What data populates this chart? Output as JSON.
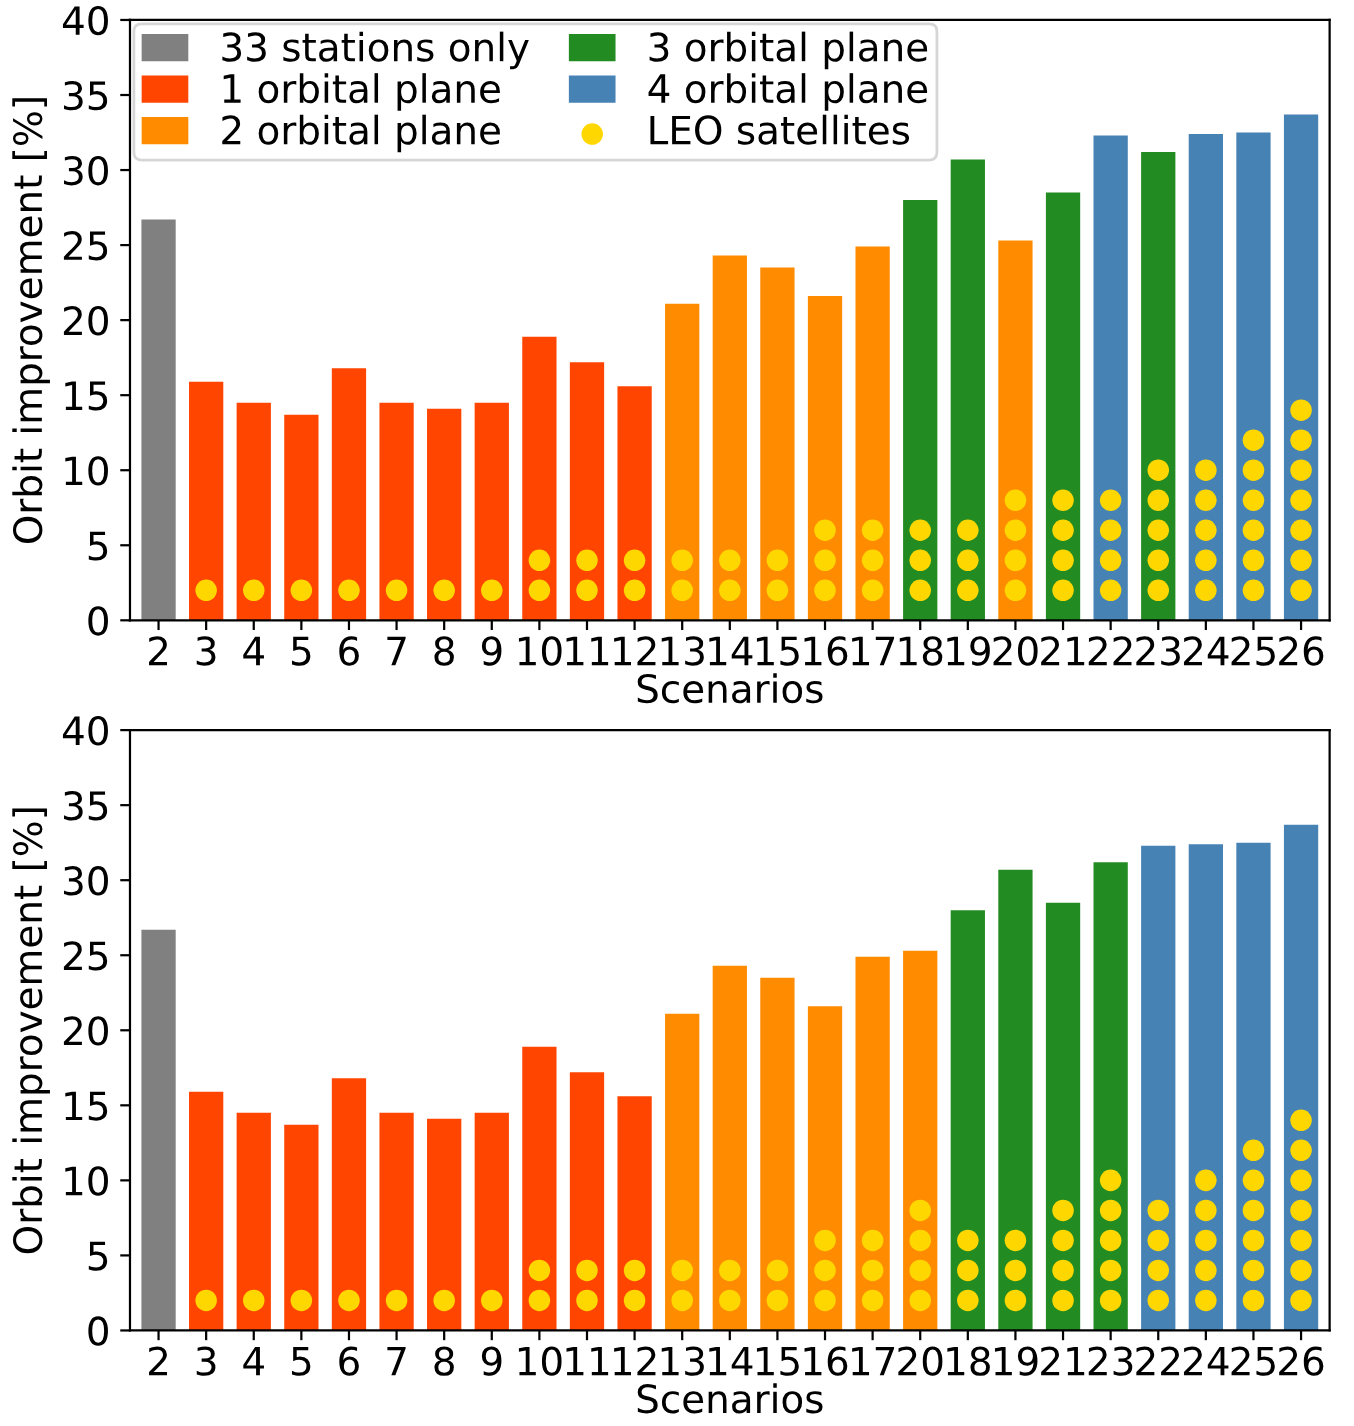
{
  "chart_data": [
    {
      "type": "bar",
      "xlabel": "Scenarios",
      "ylabel": "Orbit improvement [%]",
      "categories": [
        "2",
        "3",
        "4",
        "5",
        "6",
        "7",
        "8",
        "9",
        "10",
        "11",
        "12",
        "13",
        "14",
        "15",
        "16",
        "17",
        "18",
        "19",
        "20",
        "21",
        "22",
        "23",
        "24",
        "25",
        "26"
      ],
      "ylim": [
        0,
        40
      ],
      "yticks": [
        0,
        5,
        10,
        15,
        20,
        25,
        30,
        35,
        40
      ],
      "grid": false,
      "legend": "top left",
      "series": [
        {
          "name": "33 stations only",
          "color": "#808080",
          "values": [
            26.7,
            null,
            null,
            null,
            null,
            null,
            null,
            null,
            null,
            null,
            null,
            null,
            null,
            null,
            null,
            null,
            null,
            null,
            null,
            null,
            null,
            null,
            null,
            null,
            null
          ]
        },
        {
          "name": "1 orbital plane",
          "color": "#ff4500",
          "values": [
            null,
            15.9,
            14.5,
            13.7,
            16.8,
            14.5,
            14.1,
            14.5,
            18.9,
            17.2,
            15.6,
            null,
            null,
            null,
            null,
            null,
            null,
            null,
            null,
            null,
            null,
            null,
            null,
            null,
            null
          ]
        },
        {
          "name": "2 orbital plane",
          "color": "#ff8c00",
          "values": [
            null,
            null,
            null,
            null,
            null,
            null,
            null,
            null,
            null,
            null,
            null,
            21.1,
            24.3,
            23.5,
            21.6,
            24.9,
            null,
            null,
            25.3,
            null,
            null,
            null,
            null,
            null,
            null
          ]
        },
        {
          "name": "3 orbital plane",
          "color": "#228b22",
          "values": [
            null,
            null,
            null,
            null,
            null,
            null,
            null,
            null,
            null,
            null,
            null,
            null,
            null,
            null,
            null,
            null,
            28.0,
            30.7,
            null,
            28.5,
            null,
            31.2,
            null,
            null,
            null
          ]
        },
        {
          "name": "4 orbital plane",
          "color": "#4682b4",
          "values": [
            null,
            null,
            null,
            null,
            null,
            null,
            null,
            null,
            null,
            null,
            null,
            null,
            null,
            null,
            null,
            null,
            null,
            null,
            null,
            null,
            32.3,
            null,
            32.4,
            32.5,
            33.7
          ]
        },
        {
          "name": "LEO satellites",
          "type": "scatter",
          "marker": "circle",
          "color": "#ffd700",
          "x": [
            "3",
            "4",
            "5",
            "6",
            "7",
            "8",
            "9",
            "10",
            "10",
            "11",
            "11",
            "12",
            "12",
            "13",
            "13",
            "14",
            "14",
            "15",
            "15",
            "16",
            "16",
            "16",
            "17",
            "17",
            "17",
            "18",
            "18",
            "18",
            "19",
            "19",
            "19",
            "20",
            "20",
            "20",
            "20",
            "21",
            "21",
            "21",
            "21",
            "22",
            "22",
            "22",
            "22",
            "23",
            "23",
            "23",
            "23",
            "23",
            "24",
            "24",
            "24",
            "24",
            "24",
            "25",
            "25",
            "25",
            "25",
            "25",
            "25",
            "26",
            "26",
            "26",
            "26",
            "26",
            "26",
            "26"
          ],
          "values": [
            2,
            2,
            2,
            2,
            2,
            2,
            2,
            2,
            4,
            2,
            4,
            2,
            4,
            2,
            4,
            2,
            4,
            2,
            4,
            2,
            4,
            6,
            2,
            4,
            6,
            2,
            4,
            6,
            2,
            4,
            6,
            2,
            4,
            6,
            8,
            2,
            4,
            6,
            8,
            2,
            4,
            6,
            8,
            2,
            4,
            6,
            8,
            10,
            2,
            4,
            6,
            8,
            10,
            2,
            4,
            6,
            8,
            10,
            12,
            2,
            4,
            6,
            8,
            10,
            12,
            14
          ]
        }
      ]
    },
    {
      "type": "bar",
      "xlabel": "Scenarios",
      "ylabel": "Orbit improvement [%]",
      "categories": [
        "2",
        "3",
        "4",
        "5",
        "6",
        "7",
        "8",
        "9",
        "10",
        "11",
        "12",
        "13",
        "14",
        "15",
        "16",
        "17",
        "20",
        "18",
        "19",
        "21",
        "23",
        "22",
        "24",
        "25",
        "26"
      ],
      "ylim": [
        0,
        40
      ],
      "yticks": [
        0,
        5,
        10,
        15,
        20,
        25,
        30,
        35,
        40
      ],
      "grid": false,
      "series": [
        {
          "color": "#808080",
          "values": [
            26.7,
            null,
            null,
            null,
            null,
            null,
            null,
            null,
            null,
            null,
            null,
            null,
            null,
            null,
            null,
            null,
            null,
            null,
            null,
            null,
            null,
            null,
            null,
            null,
            null
          ]
        },
        {
          "color": "#ff4500",
          "values": [
            null,
            15.9,
            14.5,
            13.7,
            16.8,
            14.5,
            14.1,
            14.5,
            18.9,
            17.2,
            15.6,
            null,
            null,
            null,
            null,
            null,
            null,
            null,
            null,
            null,
            null,
            null,
            null,
            null,
            null
          ]
        },
        {
          "color": "#ff8c00",
          "values": [
            null,
            null,
            null,
            null,
            null,
            null,
            null,
            null,
            null,
            null,
            null,
            21.1,
            24.3,
            23.5,
            21.6,
            24.9,
            25.3,
            null,
            null,
            null,
            null,
            null,
            null,
            null,
            null
          ]
        },
        {
          "color": "#228b22",
          "values": [
            null,
            null,
            null,
            null,
            null,
            null,
            null,
            null,
            null,
            null,
            null,
            null,
            null,
            null,
            null,
            null,
            null,
            28.0,
            30.7,
            28.5,
            31.2,
            null,
            null,
            null,
            null
          ]
        },
        {
          "color": "#4682b4",
          "values": [
            null,
            null,
            null,
            null,
            null,
            null,
            null,
            null,
            null,
            null,
            null,
            null,
            null,
            null,
            null,
            null,
            null,
            null,
            null,
            null,
            null,
            32.3,
            32.4,
            32.5,
            33.7
          ]
        },
        {
          "type": "scatter",
          "marker": "circle",
          "color": "#ffd700",
          "x": [
            "3",
            "4",
            "5",
            "6",
            "7",
            "8",
            "9",
            "10",
            "10",
            "11",
            "11",
            "12",
            "12",
            "13",
            "13",
            "14",
            "14",
            "15",
            "15",
            "16",
            "16",
            "16",
            "17",
            "17",
            "17",
            "18",
            "18",
            "18",
            "19",
            "19",
            "19",
            "20",
            "20",
            "20",
            "20",
            "21",
            "21",
            "21",
            "21",
            "22",
            "22",
            "22",
            "22",
            "23",
            "23",
            "23",
            "23",
            "23",
            "24",
            "24",
            "24",
            "24",
            "24",
            "25",
            "25",
            "25",
            "25",
            "25",
            "25",
            "26",
            "26",
            "26",
            "26",
            "26",
            "26",
            "26"
          ],
          "values": [
            2,
            2,
            2,
            2,
            2,
            2,
            2,
            2,
            4,
            2,
            4,
            2,
            4,
            2,
            4,
            2,
            4,
            2,
            4,
            2,
            4,
            6,
            2,
            4,
            6,
            2,
            4,
            6,
            2,
            4,
            6,
            2,
            4,
            6,
            8,
            2,
            4,
            6,
            8,
            2,
            4,
            6,
            8,
            2,
            4,
            6,
            8,
            10,
            2,
            4,
            6,
            8,
            10,
            2,
            4,
            6,
            8,
            10,
            12,
            2,
            4,
            6,
            8,
            10,
            12,
            14
          ]
        }
      ]
    }
  ]
}
